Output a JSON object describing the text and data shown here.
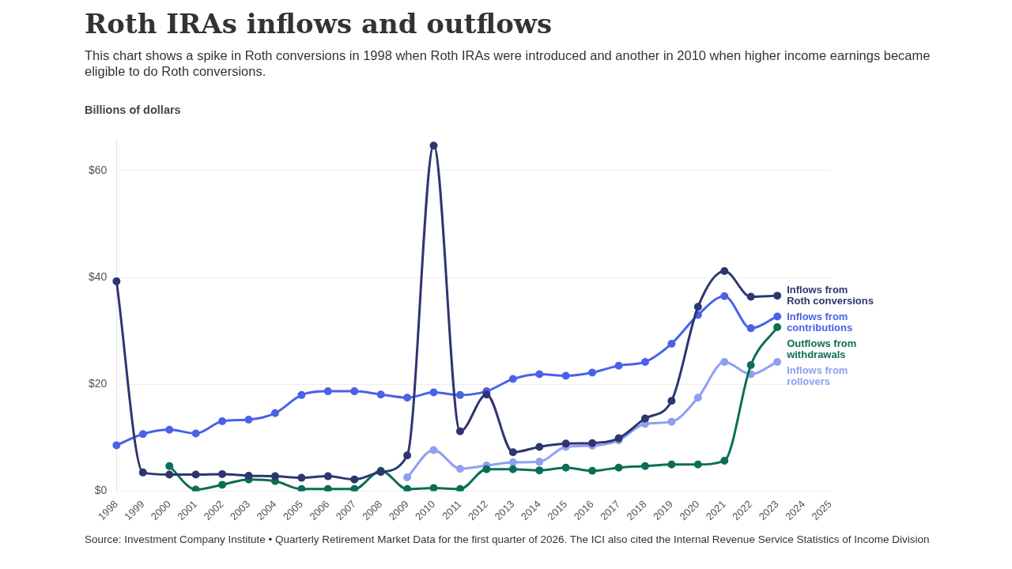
{
  "chart_data": {
    "type": "line",
    "title": "Roth IRAs inflows and outflows",
    "subtitle": "This chart shows a spike in Roth conversions in 1998 when Roth IRAs were introduced and another in 2010 when higher income earnings became eligible to do Roth conversions.",
    "ylabel": "Billions of dollars",
    "categories": [
      "1998",
      "1999",
      "2000",
      "2001",
      "2002",
      "2003",
      "2004",
      "2005",
      "2006",
      "2007",
      "2008",
      "2009",
      "2010",
      "2011",
      "2012",
      "2013",
      "2014",
      "2015",
      "2016",
      "2017",
      "2018",
      "2019",
      "2020",
      "2021",
      "2022",
      "2023",
      "2024",
      "2025"
    ],
    "series": [
      {
        "name": "Inflows from Roth conversions",
        "color": "#2e3670",
        "values": [
          39.3,
          3.5,
          3.1,
          3.1,
          3.2,
          2.9,
          2.8,
          2.5,
          2.8,
          2.2,
          3.6,
          6.7,
          64.7,
          11.2,
          18.1,
          7.3,
          8.3,
          8.9,
          9.0,
          9.9,
          13.6,
          16.9,
          34.5,
          41.2,
          36.4,
          36.6,
          null,
          null
        ]
      },
      {
        "name": "Inflows from contributions",
        "color": "#4a62e8",
        "values": [
          8.6,
          10.7,
          11.5,
          10.8,
          13.1,
          13.4,
          14.6,
          18.0,
          18.7,
          18.7,
          18.1,
          17.5,
          18.5,
          18.0,
          18.7,
          21.0,
          21.9,
          21.6,
          22.2,
          23.5,
          24.2,
          27.6,
          33.0,
          36.5,
          30.5,
          32.7,
          null,
          null
        ]
      },
      {
        "name": "Outflows from withdrawals",
        "color": "#0c6e57",
        "values": [
          null,
          null,
          4.7,
          0.3,
          1.2,
          2.2,
          1.9,
          0.4,
          0.4,
          0.4,
          3.8,
          0.4,
          0.6,
          0.4,
          4.1,
          4.1,
          3.9,
          4.4,
          3.8,
          4.4,
          4.7,
          5.0,
          5.0,
          5.7,
          23.6,
          30.7,
          null,
          null
        ]
      },
      {
        "name": "Inflows from rollovers",
        "color": "#8fa0f0",
        "values": [
          null,
          null,
          null,
          null,
          null,
          null,
          null,
          null,
          null,
          null,
          null,
          2.6,
          7.7,
          4.2,
          4.8,
          5.4,
          5.5,
          8.3,
          8.5,
          9.5,
          12.6,
          13.0,
          17.5,
          24.2,
          21.9,
          24.2,
          null,
          null
        ]
      }
    ],
    "ylim": [
      0,
      66
    ],
    "yticks": [
      {
        "value": 0,
        "label": "$0"
      },
      {
        "value": 20,
        "label": "$20"
      },
      {
        "value": 40,
        "label": "$40"
      },
      {
        "value": 60,
        "label": "$60"
      }
    ],
    "grid": "y",
    "legend": false,
    "marker": "circle",
    "line_style": "solid",
    "annotations": [
      "Source: Investment Company Institute • Quarterly Retirement Market Data for the first quarter of 2026. The ICI also cited the Internal Revenue Service Statistics of Income Division"
    ]
  }
}
